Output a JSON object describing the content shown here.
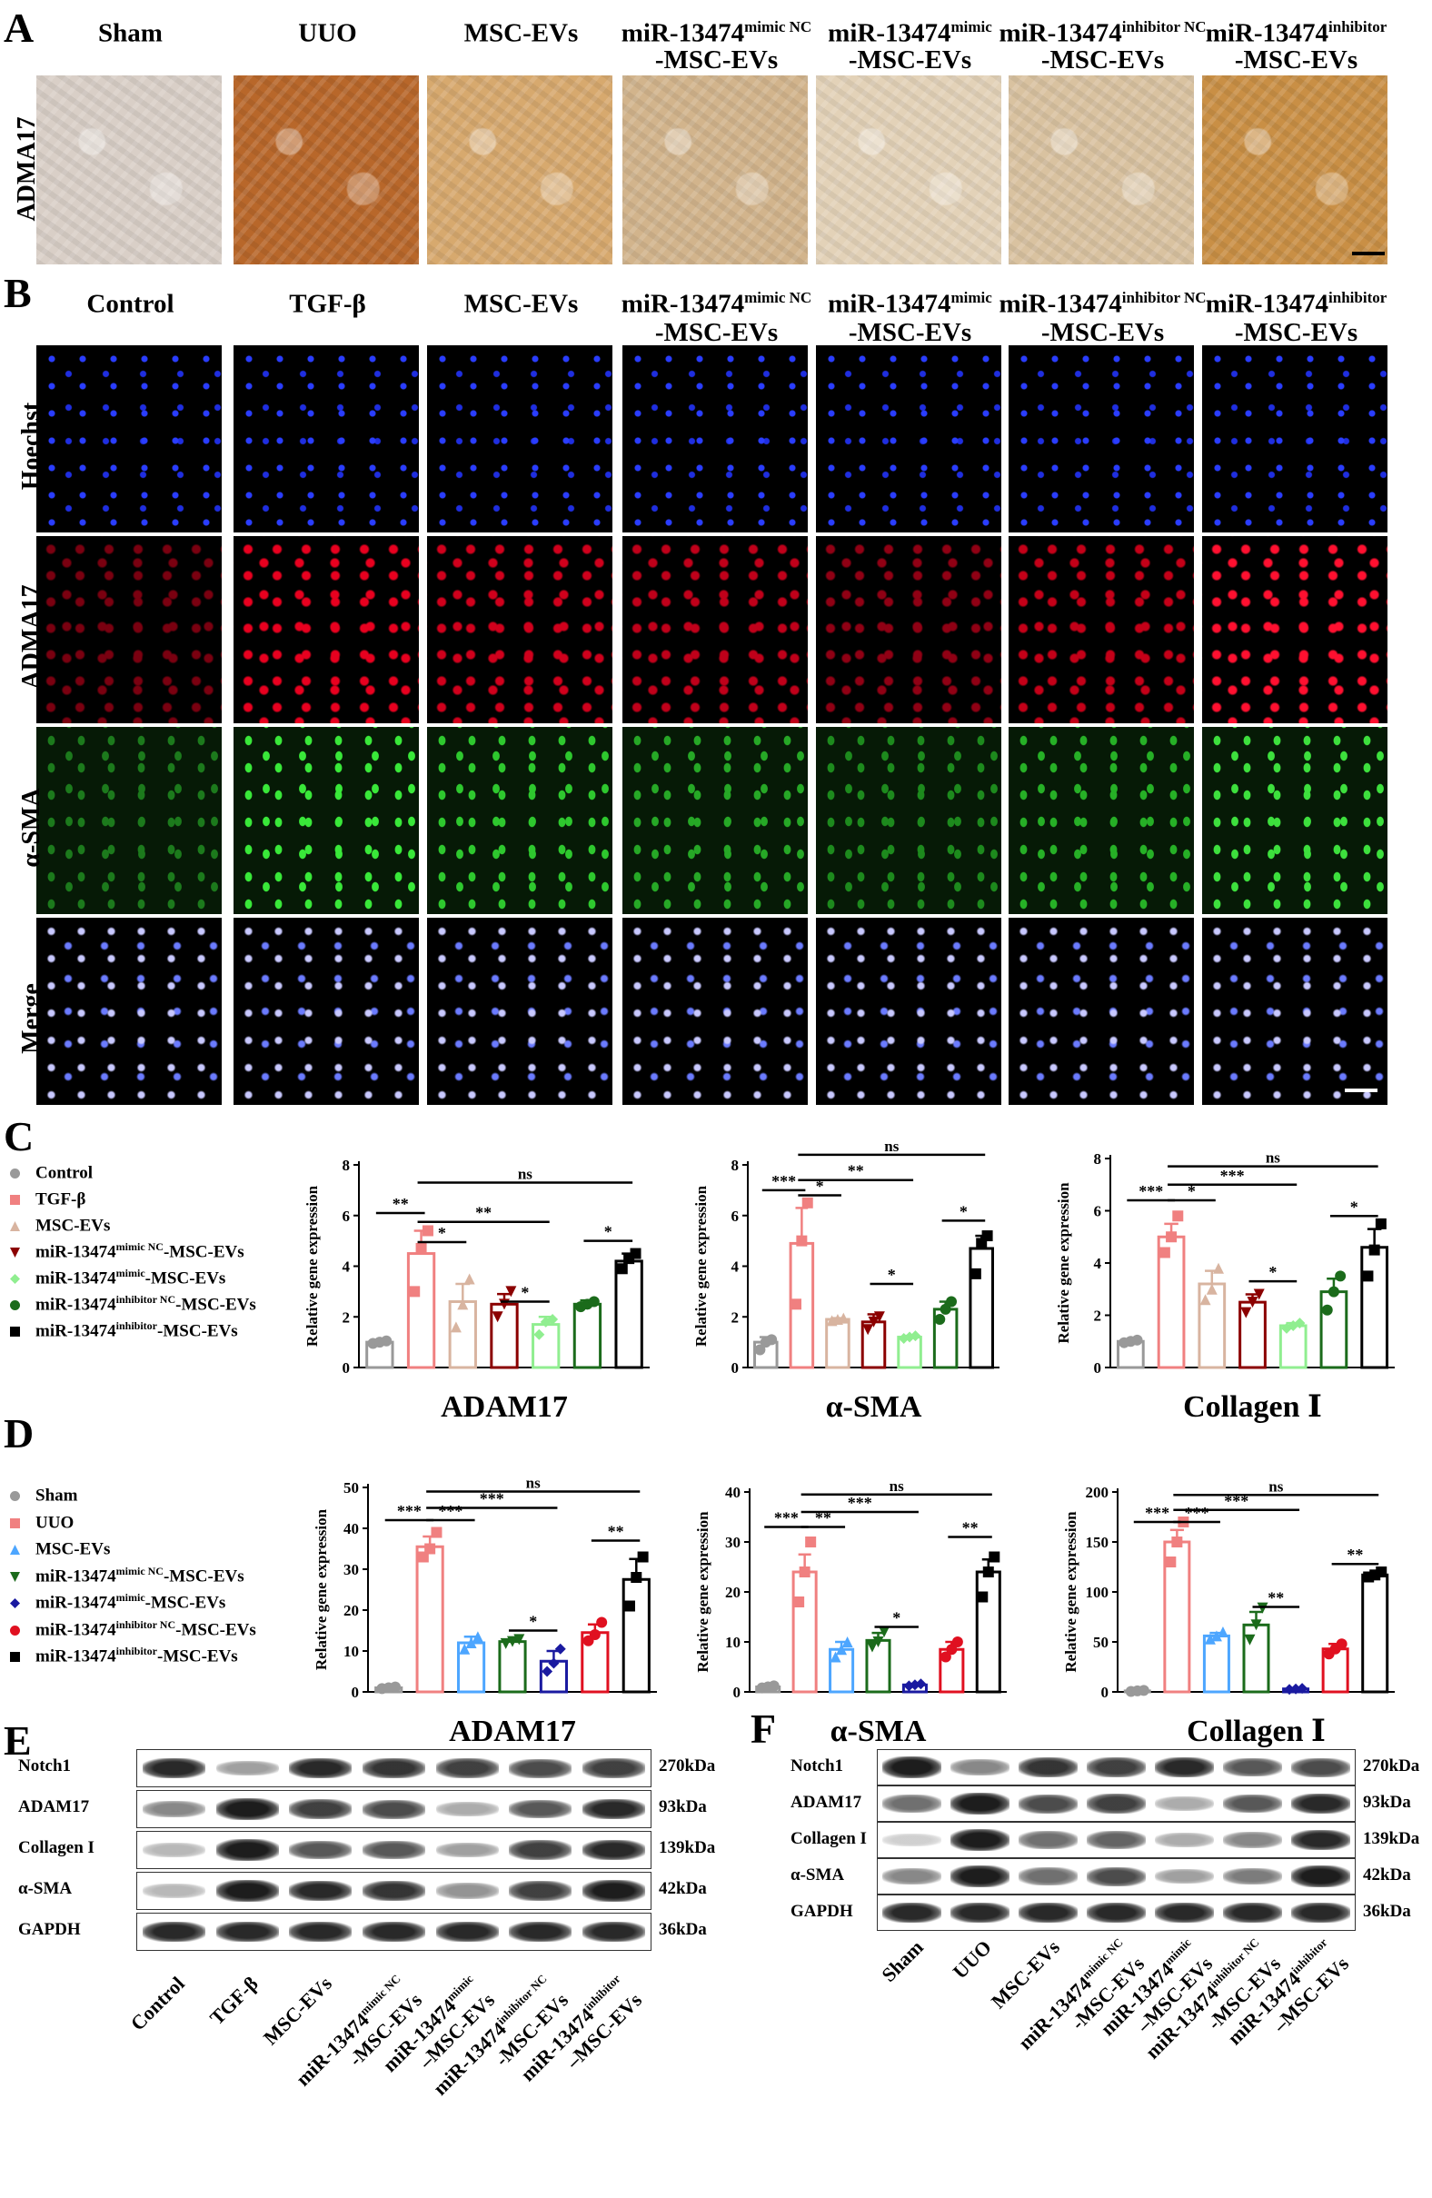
{
  "panel_labels": {
    "A": "A",
    "B": "B",
    "C": "C",
    "D": "D",
    "E": "E",
    "F": "F"
  },
  "panelA": {
    "row_label": "ADMA17",
    "headers": [
      {
        "main": "Sham",
        "sup": "",
        "sub": ""
      },
      {
        "main": "UUO",
        "sup": "",
        "sub": ""
      },
      {
        "main": "MSC-EVs",
        "sup": "",
        "sub": ""
      },
      {
        "main": "miR-13474",
        "sup": "mimic NC",
        "sub": "-MSC-EVs"
      },
      {
        "main": "miR-13474",
        "sup": "mimic",
        "sub": "-MSC-EVs"
      },
      {
        "main": "miR-13474",
        "sup": "inhibitor NC",
        "sub": "-MSC-EVs"
      },
      {
        "main": "miR-13474",
        "sup": "inhibitor",
        "sub": "-MSC-EVs"
      }
    ],
    "tile_colors": [
      "#d9cfc7",
      "#b8672a",
      "#d7a96e",
      "#d2b48c",
      "#e3d2b8",
      "#d9c2a0",
      "#c98f45"
    ]
  },
  "panelB": {
    "headers": [
      {
        "main": "Control",
        "sup": "",
        "sub": ""
      },
      {
        "main": "TGF-β",
        "sup": "",
        "sub": ""
      },
      {
        "main": "MSC-EVs",
        "sup": "",
        "sub": ""
      },
      {
        "main": "miR-13474",
        "sup": "mimic NC",
        "sub": "-MSC-EVs"
      },
      {
        "main": "miR-13474",
        "sup": "mimic",
        "sub": "-MSC-EVs"
      },
      {
        "main": "miR-13474",
        "sup": "inhibitor NC",
        "sub": "-MSC-EVs"
      },
      {
        "main": "miR-13474",
        "sup": "inhibitor",
        "sub": "-MSC-EVs"
      }
    ],
    "row_labels": [
      "Hoechst",
      "ADMA17",
      "α-SMA",
      "Merge"
    ],
    "red_colors": [
      "#7a0010",
      "#e8001f",
      "#d0001c",
      "#c0001a",
      "#900014",
      "#c40018",
      "#ff1030"
    ],
    "green_colors": [
      "#1c7a1c",
      "#39e839",
      "#2ec82e",
      "#26a826",
      "#1d8a1d",
      "#26b026",
      "#3de03d"
    ]
  },
  "panelC": {
    "legend": [
      {
        "main": "Control",
        "sup": "",
        "suffix": "",
        "color": "#999999",
        "marker": "circle"
      },
      {
        "main": "TGF-β",
        "sup": "",
        "suffix": "",
        "color": "#f08080",
        "marker": "square"
      },
      {
        "main": "MSC-EVs",
        "sup": "",
        "suffix": "",
        "color": "#d8b4a0",
        "marker": "triangle"
      },
      {
        "main": "miR-13474",
        "sup": "mimic NC",
        "suffix": "-MSC-EVs",
        "color": "#8b0000",
        "marker": "tri-down"
      },
      {
        "main": "miR-13474",
        "sup": "mimic",
        "suffix": "-MSC-EVs",
        "color": "#90ee90",
        "marker": "diamond"
      },
      {
        "main": "miR-13474",
        "sup": "inhibitor NC",
        "suffix": "-MSC-EVs",
        "color": "#1b6b1b",
        "marker": "circle"
      },
      {
        "main": "miR-13474",
        "sup": "inhibitor",
        "suffix": "-MSC-EVs",
        "color": "#000000",
        "marker": "square"
      }
    ]
  },
  "panelD": {
    "legend": [
      {
        "main": "Sham",
        "sup": "",
        "suffix": "",
        "color": "#999999",
        "marker": "circle"
      },
      {
        "main": "UUO",
        "sup": "",
        "suffix": "",
        "color": "#f08080",
        "marker": "square"
      },
      {
        "main": "MSC-EVs",
        "sup": "",
        "suffix": "",
        "color": "#4da6ff",
        "marker": "triangle"
      },
      {
        "main": "miR-13474",
        "sup": "mimic NC",
        "suffix": "-MSC-EVs",
        "color": "#1b6b1b",
        "marker": "tri-down"
      },
      {
        "main": "miR-13474",
        "sup": "mimic",
        "suffix": "-MSC-EVs",
        "color": "#1a1aa0",
        "marker": "diamond"
      },
      {
        "main": "miR-13474",
        "sup": "inhibitor NC",
        "suffix": "-MSC-EVs",
        "color": "#e01020",
        "marker": "circle"
      },
      {
        "main": "miR-13474",
        "sup": "inhibitor",
        "suffix": "-MSC-EVs",
        "color": "#000000",
        "marker": "square"
      }
    ]
  },
  "chart_data": [
    {
      "type": "bar",
      "panel": "C",
      "title": "ADAM17",
      "ylabel": "Relative gene expression",
      "ylim": [
        0,
        8
      ],
      "yticks": [
        0,
        2,
        4,
        6,
        8
      ],
      "values": [
        1.0,
        4.5,
        2.6,
        2.5,
        1.7,
        2.5,
        4.2
      ],
      "errors": [
        0.05,
        0.9,
        0.7,
        0.4,
        0.3,
        0.15,
        0.3
      ],
      "points": [
        [
          0.95,
          1.0,
          1.05
        ],
        [
          3.0,
          4.7,
          5.4
        ],
        [
          1.6,
          2.5,
          3.5
        ],
        [
          2.0,
          2.5,
          3.0
        ],
        [
          1.3,
          1.8,
          1.9
        ],
        [
          2.4,
          2.5,
          2.6
        ],
        [
          3.9,
          4.3,
          4.5
        ]
      ],
      "colors": [
        "#999999",
        "#f08080",
        "#d8b4a0",
        "#8b0000",
        "#90ee90",
        "#1b6b1b",
        "#000000"
      ],
      "markers": [
        "circle",
        "square",
        "triangle",
        "tri-down",
        "diamond",
        "circle",
        "square"
      ],
      "sig": [
        {
          "a": 0,
          "b": 1,
          "label": "**",
          "y": 6.1
        },
        {
          "a": 1,
          "b": 2,
          "label": "*",
          "y": 4.95
        },
        {
          "a": 1,
          "b": 4,
          "label": "**",
          "y": 5.75
        },
        {
          "a": 3,
          "b": 4,
          "label": "*",
          "y": 2.6
        },
        {
          "a": 5,
          "b": 6,
          "label": "*",
          "y": 5.0
        },
        {
          "a": 1,
          "b": 6,
          "label": "ns",
          "y": 7.3
        }
      ]
    },
    {
      "type": "bar",
      "panel": "C",
      "title": "α-SMA",
      "ylabel": "Relative gene expression",
      "ylim": [
        0,
        8
      ],
      "yticks": [
        0,
        2,
        4,
        6,
        8
      ],
      "values": [
        1.0,
        4.9,
        1.9,
        1.8,
        1.2,
        2.3,
        4.7
      ],
      "errors": [
        0.2,
        1.4,
        0.05,
        0.3,
        0.05,
        0.3,
        0.5
      ],
      "points": [
        [
          0.7,
          1.0,
          1.1
        ],
        [
          2.5,
          5.0,
          6.5
        ],
        [
          1.85,
          1.9,
          1.95
        ],
        [
          1.5,
          1.8,
          2.0
        ],
        [
          1.15,
          1.2,
          1.25
        ],
        [
          1.9,
          2.3,
          2.6
        ],
        [
          3.7,
          4.9,
          5.2
        ]
      ],
      "colors": [
        "#999999",
        "#f08080",
        "#d8b4a0",
        "#8b0000",
        "#90ee90",
        "#1b6b1b",
        "#000000"
      ],
      "markers": [
        "circle",
        "square",
        "triangle",
        "tri-down",
        "diamond",
        "circle",
        "square"
      ],
      "sig": [
        {
          "a": 0,
          "b": 1,
          "label": "***",
          "y": 7.0
        },
        {
          "a": 1,
          "b": 2,
          "label": "*",
          "y": 6.8
        },
        {
          "a": 1,
          "b": 4,
          "label": "**",
          "y": 7.4
        },
        {
          "a": 3,
          "b": 4,
          "label": "*",
          "y": 3.3
        },
        {
          "a": 5,
          "b": 6,
          "label": "*",
          "y": 5.8
        },
        {
          "a": 1,
          "b": 6,
          "label": "ns",
          "y": 8.4
        }
      ]
    },
    {
      "type": "bar",
      "panel": "C",
      "title": "Collagen Ⅰ",
      "ylabel": "Relative gene expression",
      "ylim": [
        0,
        8
      ],
      "yticks": [
        0,
        2,
        4,
        6,
        8
      ],
      "values": [
        1.0,
        5.0,
        3.2,
        2.5,
        1.6,
        2.9,
        4.6
      ],
      "errors": [
        0.05,
        0.5,
        0.5,
        0.3,
        0.1,
        0.5,
        0.7
      ],
      "points": [
        [
          0.95,
          1.0,
          1.05
        ],
        [
          4.4,
          5.0,
          5.8
        ],
        [
          2.6,
          3.0,
          3.8
        ],
        [
          2.1,
          2.5,
          2.8
        ],
        [
          1.5,
          1.6,
          1.7
        ],
        [
          2.2,
          2.9,
          3.5
        ],
        [
          3.5,
          4.5,
          5.5
        ]
      ],
      "colors": [
        "#999999",
        "#f08080",
        "#d8b4a0",
        "#8b0000",
        "#90ee90",
        "#1b6b1b",
        "#000000"
      ],
      "markers": [
        "circle",
        "square",
        "triangle",
        "tri-down",
        "diamond",
        "circle",
        "square"
      ],
      "sig": [
        {
          "a": 0,
          "b": 1,
          "label": "***",
          "y": 6.4
        },
        {
          "a": 1,
          "b": 2,
          "label": "*",
          "y": 6.4
        },
        {
          "a": 1,
          "b": 4,
          "label": "***",
          "y": 7.0
        },
        {
          "a": 3,
          "b": 4,
          "label": "*",
          "y": 3.3
        },
        {
          "a": 5,
          "b": 6,
          "label": "*",
          "y": 5.8
        },
        {
          "a": 1,
          "b": 6,
          "label": "ns",
          "y": 7.7
        }
      ]
    },
    {
      "type": "bar",
      "panel": "D",
      "title": "ADAM17",
      "ylabel": "Relative gene expression",
      "ylim": [
        0,
        50
      ],
      "yticks": [
        0,
        10,
        20,
        30,
        40,
        50
      ],
      "values": [
        1.0,
        35.5,
        12.0,
        12.3,
        7.5,
        14.5,
        27.5
      ],
      "errors": [
        0.2,
        2.5,
        1.5,
        0.5,
        2.5,
        2.0,
        5.0
      ],
      "points": [
        [
          0.8,
          1.0,
          1.2
        ],
        [
          33,
          35,
          39
        ],
        [
          10.5,
          12,
          13.5
        ],
        [
          11.8,
          12.3,
          12.8
        ],
        [
          5,
          7,
          10.5
        ],
        [
          12.5,
          14,
          17
        ],
        [
          21,
          28,
          33
        ]
      ],
      "colors": [
        "#999999",
        "#f08080",
        "#4da6ff",
        "#1b6b1b",
        "#1a1aa0",
        "#e01020",
        "#000000"
      ],
      "markers": [
        "circle",
        "square",
        "triangle",
        "tri-down",
        "diamond",
        "circle",
        "square"
      ],
      "sig": [
        {
          "a": 0,
          "b": 1,
          "label": "***",
          "y": 42
        },
        {
          "a": 1,
          "b": 2,
          "label": "***",
          "y": 42
        },
        {
          "a": 1,
          "b": 4,
          "label": "***",
          "y": 45
        },
        {
          "a": 3,
          "b": 4,
          "label": "*",
          "y": 15
        },
        {
          "a": 5,
          "b": 6,
          "label": "**",
          "y": 37
        },
        {
          "a": 1,
          "b": 6,
          "label": "ns",
          "y": 49
        }
      ]
    },
    {
      "type": "bar",
      "panel": "D",
      "title": "α-SMA",
      "ylabel": "Relative gene expression",
      "ylim": [
        0,
        40
      ],
      "yticks": [
        0,
        10,
        20,
        30,
        40
      ],
      "values": [
        1.0,
        24.0,
        8.5,
        10.3,
        1.4,
        8.5,
        24.0
      ],
      "errors": [
        0.2,
        3.5,
        1.5,
        1.5,
        0.2,
        1.5,
        2.5
      ],
      "points": [
        [
          0.8,
          1.0,
          1.2
        ],
        [
          18,
          24,
          30
        ],
        [
          7,
          8.5,
          10
        ],
        [
          9,
          10,
          12
        ],
        [
          1.2,
          1.4,
          1.6
        ],
        [
          7,
          8.5,
          10
        ],
        [
          19,
          24,
          27
        ]
      ],
      "colors": [
        "#999999",
        "#f08080",
        "#4da6ff",
        "#1b6b1b",
        "#1a1aa0",
        "#e01020",
        "#000000"
      ],
      "markers": [
        "circle",
        "square",
        "triangle",
        "tri-down",
        "diamond",
        "circle",
        "square"
      ],
      "sig": [
        {
          "a": 0,
          "b": 1,
          "label": "***",
          "y": 33
        },
        {
          "a": 1,
          "b": 2,
          "label": "**",
          "y": 33
        },
        {
          "a": 1,
          "b": 4,
          "label": "***",
          "y": 36
        },
        {
          "a": 3,
          "b": 4,
          "label": "*",
          "y": 13
        },
        {
          "a": 5,
          "b": 6,
          "label": "**",
          "y": 31
        },
        {
          "a": 1,
          "b": 6,
          "label": "ns",
          "y": 39.5
        }
      ]
    },
    {
      "type": "bar",
      "panel": "D",
      "title": "Collagen Ⅰ",
      "ylabel": "Relative gene expression",
      "ylim": [
        0,
        200
      ],
      "yticks": [
        0,
        50,
        100,
        150,
        200
      ],
      "values": [
        1.0,
        150.0,
        56.0,
        67.0,
        3.0,
        43.0,
        117.0
      ],
      "errors": [
        0.5,
        12.0,
        3.0,
        13.0,
        0.5,
        5.0,
        2.0
      ],
      "points": [
        [
          0.5,
          1.0,
          1.5
        ],
        [
          130,
          150,
          170
        ],
        [
          53,
          56,
          60
        ],
        [
          52,
          67,
          84
        ],
        [
          2.5,
          3,
          3.5
        ],
        [
          38,
          43,
          48
        ],
        [
          115,
          117,
          120
        ]
      ],
      "colors": [
        "#999999",
        "#f08080",
        "#4da6ff",
        "#1b6b1b",
        "#1a1aa0",
        "#e01020",
        "#000000"
      ],
      "markers": [
        "circle",
        "square",
        "triangle",
        "tri-down",
        "diamond",
        "circle",
        "square"
      ],
      "sig": [
        {
          "a": 0,
          "b": 1,
          "label": "***",
          "y": 170
        },
        {
          "a": 1,
          "b": 2,
          "label": "***",
          "y": 170
        },
        {
          "a": 1,
          "b": 4,
          "label": "***",
          "y": 182
        },
        {
          "a": 3,
          "b": 4,
          "label": "**",
          "y": 85
        },
        {
          "a": 5,
          "b": 6,
          "label": "**",
          "y": 128
        },
        {
          "a": 1,
          "b": 6,
          "label": "ns",
          "y": 197
        }
      ]
    }
  ],
  "panelE": {
    "proteins": [
      "Notch1",
      "ADAM17",
      "Collagen I",
      "α-SMA",
      "GAPDH"
    ],
    "sizes": [
      "270kDa",
      "93kDa",
      "139kDa",
      "42kDa",
      "36kDa"
    ],
    "intensity": [
      [
        0.9,
        0.4,
        0.9,
        0.85,
        0.8,
        0.75,
        0.8
      ],
      [
        0.5,
        0.95,
        0.8,
        0.75,
        0.35,
        0.7,
        0.9
      ],
      [
        0.3,
        0.95,
        0.7,
        0.7,
        0.4,
        0.8,
        0.9
      ],
      [
        0.3,
        0.95,
        0.9,
        0.85,
        0.45,
        0.8,
        0.95
      ],
      [
        0.9,
        0.9,
        0.9,
        0.9,
        0.9,
        0.9,
        0.9
      ]
    ],
    "lanes": [
      {
        "main": "Control",
        "sup": "",
        "sub": ""
      },
      {
        "main": "TGF-β",
        "sup": "",
        "sub": ""
      },
      {
        "main": "MSC-EVs",
        "sup": "",
        "sub": ""
      },
      {
        "main": "miR-13474",
        "sup": "mimic NC",
        "sub": "-MSC-EVs"
      },
      {
        "main": "miR-13474",
        "sup": "mimic",
        "sub": "–MSC-EVs"
      },
      {
        "main": "miR-13474",
        "sup": "inhibitor NC",
        "sub": "-MSC-EVs"
      },
      {
        "main": "miR-13474",
        "sup": "inhibitor",
        "sub": "–MSC-EVs"
      }
    ]
  },
  "panelF": {
    "proteins": [
      "Notch1",
      "ADAM17",
      "Collagen I",
      "α-SMA",
      "GAPDH"
    ],
    "sizes": [
      "270kDa",
      "93kDa",
      "139kDa",
      "42kDa",
      "36kDa"
    ],
    "intensity": [
      [
        0.95,
        0.5,
        0.85,
        0.8,
        0.9,
        0.7,
        0.75
      ],
      [
        0.6,
        0.95,
        0.75,
        0.8,
        0.35,
        0.7,
        0.9
      ],
      [
        0.2,
        0.95,
        0.6,
        0.65,
        0.35,
        0.5,
        0.9
      ],
      [
        0.5,
        0.95,
        0.6,
        0.75,
        0.4,
        0.55,
        0.95
      ],
      [
        0.9,
        0.9,
        0.9,
        0.9,
        0.9,
        0.9,
        0.9
      ]
    ],
    "lanes": [
      {
        "main": "Sham",
        "sup": "",
        "sub": ""
      },
      {
        "main": "UUO",
        "sup": "",
        "sub": ""
      },
      {
        "main": "MSC-EVs",
        "sup": "",
        "sub": ""
      },
      {
        "main": "miR-13474",
        "sup": "mimic NC",
        "sub": "-MSC-EVs"
      },
      {
        "main": "miR-13474",
        "sup": "mimic",
        "sub": "–MSC-EVs"
      },
      {
        "main": "miR-13474",
        "sup": "inhibitor NC",
        "sub": "-MSC-EVs"
      },
      {
        "main": "miR-13474",
        "sup": "inhibitor",
        "sub": "–MSC-EVs"
      }
    ]
  }
}
